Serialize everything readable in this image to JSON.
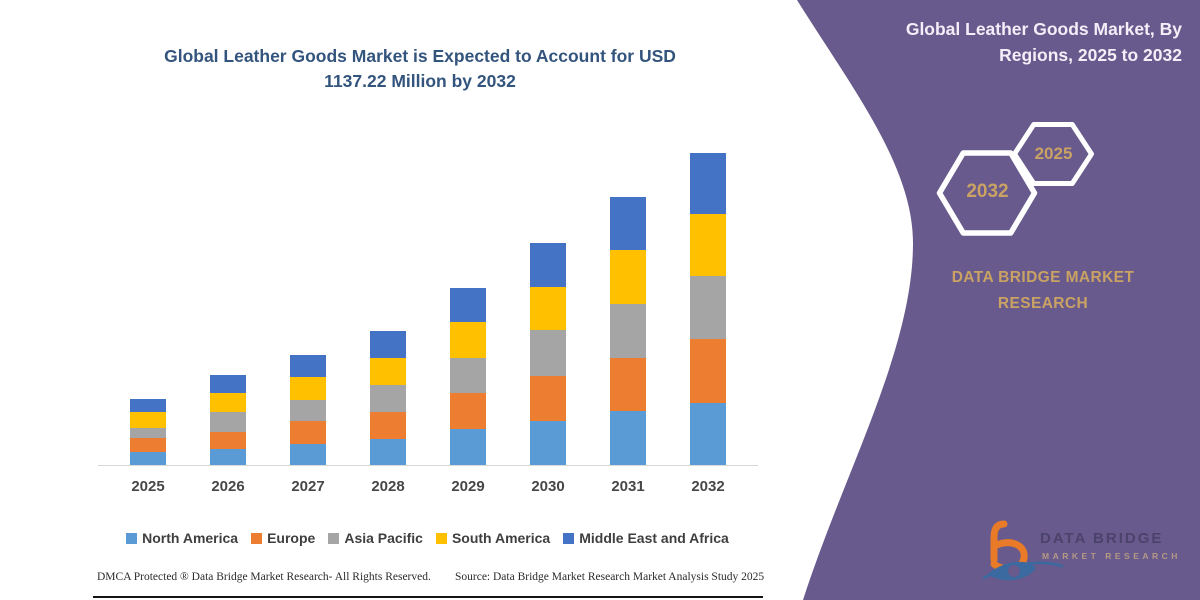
{
  "chart": {
    "title_line1": "Global Leather Goods Market is Expected to Account for USD",
    "title_line2": "1137.22 Million by 2032"
  },
  "chart_data": {
    "type": "bar",
    "stacked": true,
    "title": "Global Leather Goods Market is Expected to Account for USD 1137.22 Million by 2032",
    "unit": "USD Million",
    "categories": [
      "2025",
      "2026",
      "2027",
      "2028",
      "2029",
      "2030",
      "2031",
      "2032"
    ],
    "series": [
      {
        "name": "North America",
        "color": "#5B9BD5",
        "values": [
          49,
          59,
          77,
          94,
          131,
          162,
          198,
          226
        ]
      },
      {
        "name": "Europe",
        "color": "#ED7D31",
        "values": [
          49,
          63,
          82,
          99,
          132,
          164,
          193,
          232
        ]
      },
      {
        "name": "Asia Pacific",
        "color": "#A5A5A5",
        "values": [
          37,
          70,
          80,
          100,
          128,
          165,
          196,
          232
        ]
      },
      {
        "name": "South America",
        "color": "#FFC000",
        "values": [
          58,
          69,
          81,
          98,
          131,
          159,
          198,
          226
        ]
      },
      {
        "name": "Middle East and Africa",
        "color": "#4472C4",
        "values": [
          47,
          66,
          82,
          98,
          123,
          159,
          193,
          221.22
        ]
      }
    ],
    "totals": [
      240,
      327,
      402,
      489,
      645,
      809,
      978,
      1137.22
    ],
    "ylim": [
      0,
      1137.22
    ],
    "grid": false,
    "legend_position": "bottom",
    "xlabel": "",
    "ylabel": ""
  },
  "panel": {
    "title_line1": "Global Leather Goods Market, By",
    "title_line2": "Regions, 2025 to 2032",
    "hexagon_back_label": "2032",
    "hexagon_front_label": "2025",
    "brand_line1": "DATA BRIDGE MARKET",
    "brand_line2": "RESEARCH"
  },
  "footer": {
    "dmca": "DMCA Protected ® Data Bridge Market Research-  All Rights Reserved.",
    "source": "Source: Data Bridge Market Research  Market Analysis Study 2025"
  },
  "logo": {
    "line1": "DATA BRIDGE",
    "line2": "MARKET RESEARCH"
  },
  "colors": {
    "panel_purple": "#685A8C",
    "accent_gold": "#c9a264",
    "title_navy": "#33547D"
  }
}
